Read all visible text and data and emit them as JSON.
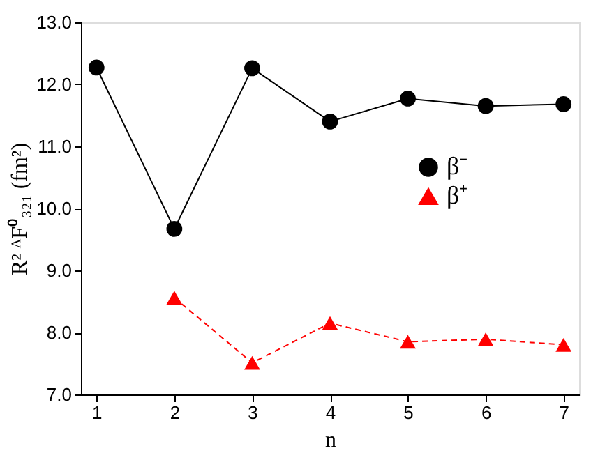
{
  "chart_data": {
    "type": "line",
    "xlabel": "n",
    "ylabel": "R² ᴬF⁰₃₂₁ (fm²)",
    "x": [
      1,
      2,
      3,
      4,
      5,
      6,
      7
    ],
    "series": [
      {
        "name": "β⁻",
        "color": "#000000",
        "marker": "circle",
        "line_style": "solid",
        "values": [
          12.27,
          9.67,
          12.26,
          11.4,
          11.77,
          11.65,
          11.68
        ]
      },
      {
        "name": "β⁺",
        "color": "#ff0000",
        "marker": "triangle",
        "line_style": "dashed",
        "values": [
          null,
          8.56,
          7.51,
          8.15,
          7.85,
          7.89,
          7.8
        ]
      }
    ],
    "xlim": [
      0.8,
      7.2
    ],
    "xticks": [
      1,
      2,
      3,
      4,
      5,
      6,
      7
    ],
    "ylim": [
      7.0,
      13.0
    ],
    "yticks": [
      {
        "value": 7,
        "label": "7.0"
      },
      {
        "value": 8,
        "label": "8.0"
      },
      {
        "value": 9,
        "label": "9.0"
      },
      {
        "value": 10,
        "label": "10.0"
      },
      {
        "value": 11,
        "label": "11.0"
      },
      {
        "value": 12,
        "label": "12.0"
      },
      {
        "value": 13,
        "label": "13.0"
      }
    ],
    "grid": false,
    "legend": "right"
  }
}
